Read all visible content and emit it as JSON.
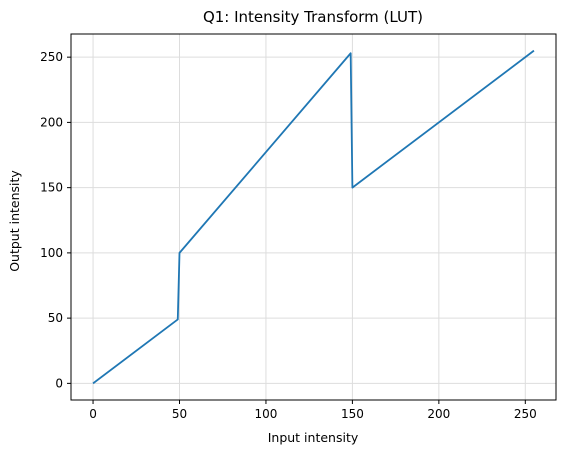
{
  "chart_data": {
    "type": "line",
    "title": "Q1: Intensity Transform (LUT)",
    "xlabel": "Input intensity",
    "ylabel": "Output intensity",
    "xlim": [
      -12.75,
      267.75
    ],
    "ylim": [
      -12.75,
      267.75
    ],
    "xticks": [
      0,
      50,
      100,
      150,
      200,
      250
    ],
    "yticks": [
      0,
      50,
      100,
      150,
      200,
      250
    ],
    "grid": true,
    "series": [
      {
        "color": "#1f77b4",
        "x": [
          0,
          49,
          50,
          149,
          150,
          255
        ],
        "y": [
          0,
          49,
          100,
          253,
          150,
          255
        ]
      }
    ]
  }
}
